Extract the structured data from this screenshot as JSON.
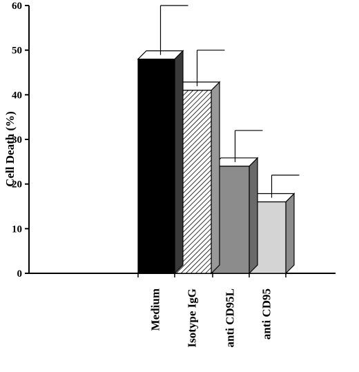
{
  "chart_data": {
    "type": "bar",
    "title": "",
    "xlabel": "",
    "ylabel": "Cell Death (%)",
    "ylim": [
      0,
      60
    ],
    "yticks": [
      0,
      10,
      20,
      30,
      40,
      50,
      60
    ],
    "categories": [
      "Medium",
      "Isotype IgG",
      "anti CD95L",
      "anti CD95"
    ],
    "values": [
      48,
      41,
      24,
      16
    ],
    "error_upper": [
      60,
      50,
      32,
      22
    ],
    "bar_styles": [
      {
        "front": "#000000",
        "side": "#3a3a3a",
        "pattern": "solid"
      },
      {
        "front": "#ffffff",
        "side": "#999999",
        "pattern": "diagonal-hatch"
      },
      {
        "front": "#8c8c8c",
        "side": "#6a6a6a",
        "pattern": "solid"
      },
      {
        "front": "#d4d4d4",
        "side": "#8c8c8c",
        "pattern": "solid"
      }
    ],
    "style": "3d-bars",
    "grid": false,
    "legend": "none"
  }
}
